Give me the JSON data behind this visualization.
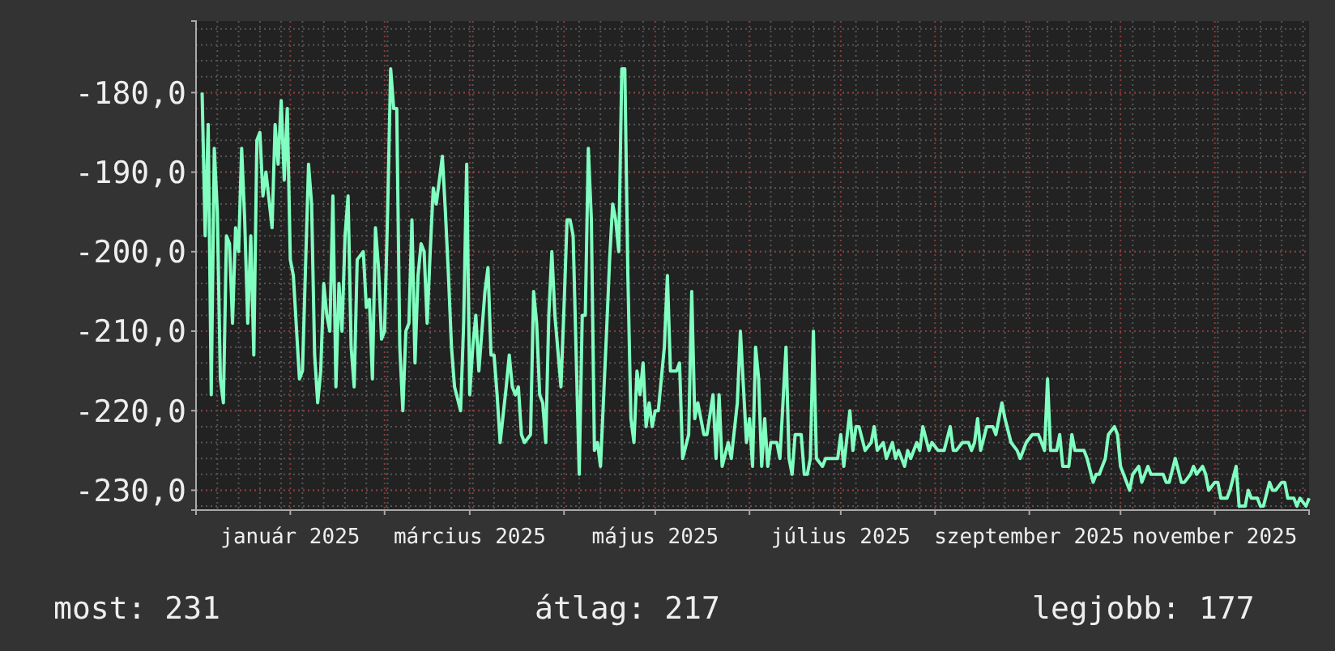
{
  "chart_data": {
    "type": "line",
    "x": [
      "2024-12-03",
      "2024-12-04",
      "2024-12-05",
      "2024-12-06",
      "2024-12-07",
      "2024-12-08",
      "2024-12-09",
      "2024-12-10",
      "2024-12-11",
      "2024-12-12",
      "2024-12-13",
      "2024-12-14",
      "2024-12-15",
      "2024-12-16",
      "2024-12-17",
      "2024-12-18",
      "2024-12-19",
      "2024-12-20",
      "2024-12-21",
      "2024-12-22",
      "2024-12-23",
      "2024-12-24",
      "2024-12-26",
      "2024-12-27",
      "2024-12-28",
      "2024-12-29",
      "2024-12-30",
      "2024-12-31",
      "2025-01-01",
      "2025-01-02",
      "2025-01-04",
      "2025-01-05",
      "2025-01-07",
      "2025-01-08",
      "2025-01-09",
      "2025-01-10",
      "2025-01-11",
      "2025-01-12",
      "2025-01-13",
      "2025-01-14",
      "2025-01-15",
      "2025-01-16",
      "2025-01-17",
      "2025-01-18",
      "2025-01-19",
      "2025-01-20",
      "2025-01-21",
      "2025-01-22",
      "2025-01-23",
      "2025-01-25",
      "2025-01-26",
      "2025-01-27",
      "2025-01-28",
      "2025-01-29",
      "2025-01-30",
      "2025-01-31",
      "2025-02-01",
      "2025-02-02",
      "2025-02-03",
      "2025-02-04",
      "2025-02-05",
      "2025-02-06",
      "2025-02-07",
      "2025-02-08",
      "2025-02-09",
      "2025-02-10",
      "2025-02-11",
      "2025-02-12",
      "2025-02-13",
      "2025-02-14",
      "2025-02-15",
      "2025-02-16",
      "2025-02-17",
      "2025-02-18",
      "2025-02-20",
      "2025-02-21",
      "2025-02-22",
      "2025-02-23",
      "2025-02-24",
      "2025-02-26",
      "2025-02-27",
      "2025-02-28",
      "2025-03-01",
      "2025-03-02",
      "2025-03-03",
      "2025-03-04",
      "2025-03-06",
      "2025-03-07",
      "2025-03-08",
      "2025-03-09",
      "2025-03-10",
      "2025-03-11",
      "2025-03-13",
      "2025-03-14",
      "2025-03-15",
      "2025-03-16",
      "2025-03-17",
      "2025-03-18",
      "2025-03-19",
      "2025-03-21",
      "2025-03-22",
      "2025-03-23",
      "2025-03-24",
      "2025-03-25",
      "2025-03-26",
      "2025-03-27",
      "2025-03-28",
      "2025-03-29",
      "2025-03-31",
      "2025-04-01",
      "2025-04-02",
      "2025-04-03",
      "2025-04-04",
      "2025-04-06",
      "2025-04-07",
      "2025-04-08",
      "2025-04-09",
      "2025-04-10",
      "2025-04-11",
      "2025-04-12",
      "2025-04-13",
      "2025-04-15",
      "2025-04-16",
      "2025-04-17",
      "2025-04-18",
      "2025-04-19",
      "2025-04-20",
      "2025-04-21",
      "2025-04-22",
      "2025-04-23",
      "2025-04-24",
      "2025-04-25",
      "2025-04-26",
      "2025-04-27",
      "2025-04-28",
      "2025-04-29",
      "2025-04-30",
      "2025-05-01",
      "2025-05-02",
      "2025-05-04",
      "2025-05-05",
      "2025-05-06",
      "2025-05-08",
      "2025-05-09",
      "2025-05-10",
      "2025-05-12",
      "2025-05-13",
      "2025-05-14",
      "2025-05-15",
      "2025-05-17",
      "2025-05-18",
      "2025-05-20",
      "2025-05-21",
      "2025-05-22",
      "2025-05-23",
      "2025-05-25",
      "2025-05-26",
      "2025-05-28",
      "2025-05-29",
      "2025-05-31",
      "2025-06-01",
      "2025-06-02",
      "2025-06-03",
      "2025-06-04",
      "2025-06-05",
      "2025-06-06",
      "2025-06-07",
      "2025-06-08",
      "2025-06-10",
      "2025-06-11",
      "2025-06-13",
      "2025-06-14",
      "2025-06-15",
      "2025-06-16",
      "2025-06-18",
      "2025-06-19",
      "2025-06-20",
      "2025-06-21",
      "2025-06-22",
      "2025-06-23",
      "2025-06-25",
      "2025-06-26",
      "2025-06-28",
      "2025-06-30",
      "2025-07-01",
      "2025-07-02",
      "2025-07-04",
      "2025-07-05",
      "2025-07-06",
      "2025-07-07",
      "2025-07-09",
      "2025-07-11",
      "2025-07-12",
      "2025-07-13",
      "2025-07-15",
      "2025-07-16",
      "2025-07-18",
      "2025-07-19",
      "2025-07-20",
      "2025-07-22",
      "2025-07-23",
      "2025-07-24",
      "2025-07-26",
      "2025-07-27",
      "2025-07-28",
      "2025-07-30",
      "2025-07-31",
      "2025-08-02",
      "2025-08-04",
      "2025-08-06",
      "2025-08-07",
      "2025-08-08",
      "2025-08-10",
      "2025-08-12",
      "2025-08-13",
      "2025-08-14",
      "2025-08-15",
      "2025-08-16",
      "2025-08-18",
      "2025-08-20",
      "2025-08-21",
      "2025-08-23",
      "2025-08-24",
      "2025-08-26",
      "2025-08-28",
      "2025-08-29",
      "2025-08-31",
      "2025-09-02",
      "2025-09-04",
      "2025-09-05",
      "2025-09-06",
      "2025-09-07",
      "2025-09-08",
      "2025-09-10",
      "2025-09-11",
      "2025-09-12",
      "2025-09-14",
      "2025-09-15",
      "2025-09-16",
      "2025-09-18",
      "2025-09-19",
      "2025-09-20",
      "2025-09-22",
      "2025-09-23",
      "2025-09-24",
      "2025-09-26",
      "2025-09-27",
      "2025-09-29",
      "2025-09-30",
      "2025-10-01",
      "2025-10-02",
      "2025-10-04",
      "2025-10-05",
      "2025-10-07",
      "2025-10-08",
      "2025-10-10",
      "2025-10-11",
      "2025-10-13",
      "2025-10-15",
      "2025-10-16",
      "2025-10-17",
      "2025-10-19",
      "2025-10-21",
      "2025-10-22",
      "2025-10-24",
      "2025-10-25",
      "2025-10-26",
      "2025-10-28",
      "2025-10-29",
      "2025-10-30",
      "2025-11-01",
      "2025-11-02",
      "2025-11-03",
      "2025-11-05",
      "2025-11-06",
      "2025-11-08",
      "2025-11-09",
      "2025-11-11",
      "2025-11-12",
      "2025-11-13",
      "2025-11-15",
      "2025-11-16",
      "2025-11-17",
      "2025-11-19",
      "2025-11-20",
      "2025-11-21",
      "2025-11-23",
      "2025-11-24",
      "2025-11-25",
      "2025-11-27",
      "2025-11-28",
      "2025-11-29",
      "2025-12-01",
      "2025-12-02"
    ],
    "series": [
      {
        "color": "#80ffc0",
        "values": [
          -180,
          -198,
          -184,
          -218,
          -187,
          -195,
          -216,
          -219,
          -198,
          -199,
          -209,
          -197,
          -200,
          -187,
          -196,
          -209,
          -198,
          -213,
          -186,
          -185,
          -193,
          -190,
          -197,
          -184,
          -189,
          -181,
          -191,
          -182,
          -201,
          -203,
          -216,
          -215,
          -189,
          -194,
          -213,
          -219,
          -215,
          -204,
          -208,
          -210,
          -193,
          -217,
          -204,
          -210,
          -198,
          -193,
          -212,
          -217,
          -201,
          -200,
          -207,
          -206,
          -216,
          -197,
          -202,
          -211,
          -210,
          -195,
          -177,
          -182,
          -182,
          -212,
          -220,
          -210,
          -209,
          -196,
          -214,
          -203,
          -199,
          -200,
          -209,
          -200,
          -192,
          -194,
          -188,
          -195,
          -203,
          -212,
          -217,
          -220,
          -209,
          -189,
          -218,
          -212,
          -208,
          -215,
          -205,
          -202,
          -213,
          -213,
          -218,
          -224,
          -217,
          -213,
          -217,
          -218,
          -217,
          -223,
          -224,
          -223,
          -205,
          -209,
          -218,
          -219,
          -224,
          -208,
          -200,
          -208,
          -217,
          -207,
          -196,
          -196,
          -198,
          -228,
          -208,
          -208,
          -187,
          -196,
          -225,
          -224,
          -227,
          -210,
          -201,
          -194,
          -196,
          -200,
          -177,
          -177,
          -203,
          -221,
          -224,
          -215,
          -218,
          -214,
          -222,
          -219,
          -222,
          -220,
          -220,
          -212,
          -203,
          -215,
          -215,
          -214,
          -226,
          -223,
          -205,
          -221,
          -219,
          -223,
          -223,
          -218,
          -226,
          -218,
          -227,
          -224,
          -226,
          -219,
          -210,
          -224,
          -221,
          -227,
          -212,
          -216,
          -227,
          -221,
          -227,
          -224,
          -224,
          -226,
          -212,
          -226,
          -228,
          -223,
          -223,
          -228,
          -228,
          -226,
          -210,
          -226,
          -227,
          -226,
          -226,
          -226,
          -223,
          -227,
          -220,
          -225,
          -222,
          -222,
          -225,
          -224,
          -222,
          -225,
          -224,
          -226,
          -224,
          -226,
          -225,
          -227,
          -225,
          -226,
          -224,
          -225,
          -222,
          -225,
          -224,
          -225,
          -225,
          -222,
          -225,
          -225,
          -224,
          -224,
          -225,
          -224,
          -221,
          -225,
          -222,
          -222,
          -223,
          -219,
          -221,
          -224,
          -225,
          -226,
          -224,
          -223,
          -223,
          -224,
          -225,
          -216,
          -225,
          -225,
          -223,
          -227,
          -227,
          -223,
          -225,
          -225,
          -225,
          -226,
          -229,
          -228,
          -228,
          -226,
          -223,
          -222,
          -223,
          -227,
          -228,
          -230,
          -228,
          -227,
          -229,
          -227,
          -228,
          -228,
          -228,
          -229,
          -229,
          -226,
          -229,
          -229,
          -228,
          -227,
          -228,
          -227,
          -228,
          -230,
          -229,
          -229,
          -231,
          -231,
          -230,
          -227,
          -232,
          -232,
          -230,
          -231,
          -231,
          -232,
          -232,
          -229,
          -230,
          -230,
          -229,
          -229,
          -231,
          -231,
          -232,
          -231,
          -232,
          -231
        ]
      }
    ],
    "xlim": [
      "2024-12-01",
      "2025-12-02"
    ],
    "xticks": [
      {
        "value": "2025-01-01",
        "label": "január 2025"
      },
      {
        "value": "2025-02-01",
        "label": null
      },
      {
        "value": "2025-03-01",
        "label": "március 2025"
      },
      {
        "value": "2025-04-01",
        "label": null
      },
      {
        "value": "2025-05-01",
        "label": "május 2025"
      },
      {
        "value": "2025-06-01",
        "label": null
      },
      {
        "value": "2025-07-01",
        "label": "július 2025"
      },
      {
        "value": "2025-08-01",
        "label": null
      },
      {
        "value": "2025-09-01",
        "label": "szeptember 2025"
      },
      {
        "value": "2025-10-01",
        "label": null
      },
      {
        "value": "2025-11-01",
        "label": "november 2025"
      }
    ],
    "ylim": [
      -232.5,
      -171
    ],
    "yticks": [
      {
        "value": -230,
        "label": "-230,0"
      },
      {
        "value": -220,
        "label": "-220,0"
      },
      {
        "value": -210,
        "label": "-210,0"
      },
      {
        "value": -200,
        "label": "-200,0"
      },
      {
        "value": -190,
        "label": "-190,0"
      },
      {
        "value": -180,
        "label": "-180,0"
      }
    ],
    "grid": true,
    "line_style": "solid",
    "marker": "none",
    "annotations": [
      "most: 231",
      "átlag: 217",
      "legjobb: 177"
    ]
  }
}
